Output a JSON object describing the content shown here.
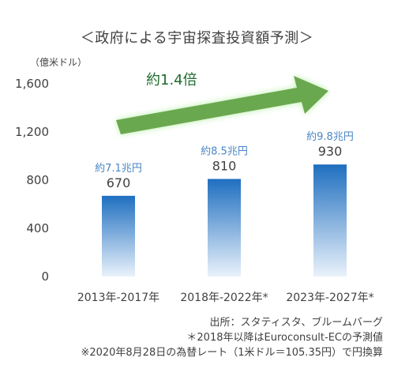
{
  "title": "＜政府による宇宙探査投資額予測＞",
  "unit_label": "（億米ドル）",
  "growth_label": "約1.4倍",
  "footnotes": {
    "source": "出所：スタティスタ、ブルームバーグ",
    "note_forecast": "＊2018年以降はEuroconsult-ECの予測値",
    "note_fx": "※2020年8月28日の為替レート（1米ドル＝105.35円）で円換算"
  },
  "colors": {
    "bar_top": "#1f6fc0",
    "bar_bottom": "#eaf2fb",
    "arrow_fill": "#6aa84f",
    "arrow_glow": "#b7f0a8",
    "yen_text": "#4a86c5"
  },
  "chart_data": {
    "type": "bar",
    "categories": [
      "2013年-2017年",
      "2018年-2022年*",
      "2023年-2027年*"
    ],
    "values": [
      670,
      810,
      930
    ],
    "data_labels": [
      "670",
      "810",
      "930"
    ],
    "yen_labels": [
      "約7.1兆円",
      "約8.5兆円",
      "約9.8兆円"
    ],
    "ylabel": "（億米ドル）",
    "ylim": [
      0,
      1600
    ],
    "yticks": [
      0,
      400,
      800,
      1200,
      1600
    ],
    "ytick_labels": [
      "0",
      "400",
      "800",
      "1,200",
      "1,600"
    ],
    "grid": false,
    "annotation": "約1.4倍"
  }
}
